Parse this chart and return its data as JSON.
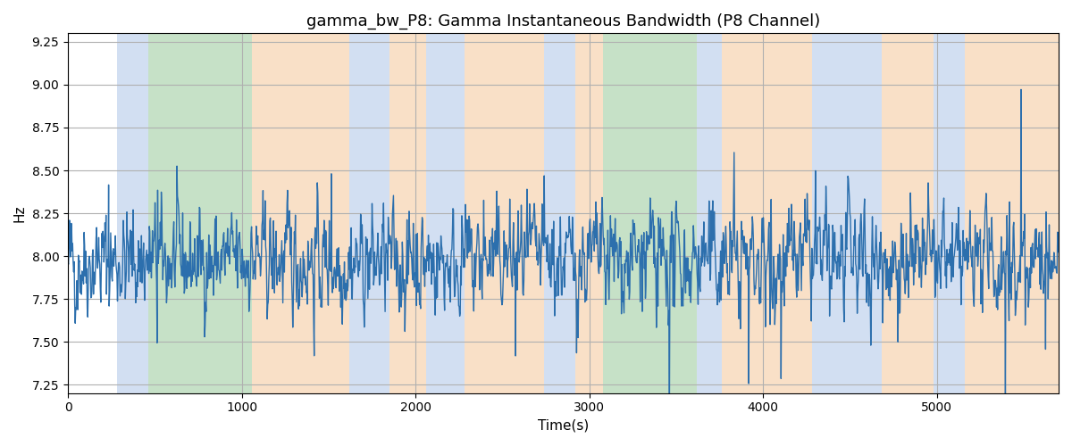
{
  "title": "gamma_bw_P8: Gamma Instantaneous Bandwidth (P8 Channel)",
  "xlabel": "Time(s)",
  "ylabel": "Hz",
  "ylim": [
    7.2,
    9.3
  ],
  "xlim": [
    0,
    5700
  ],
  "background_color": "#ffffff",
  "grid_color": "#b0b0b0",
  "line_color": "#2c6fad",
  "line_width": 1.0,
  "fig_width": 12.0,
  "fig_height": 5.0,
  "title_fontsize": 13,
  "label_fontsize": 11,
  "colored_bands": [
    {
      "xmin": 280,
      "xmax": 460,
      "color": "#aec6e8",
      "alpha": 0.55
    },
    {
      "xmin": 460,
      "xmax": 1060,
      "color": "#98c99a",
      "alpha": 0.55
    },
    {
      "xmin": 1060,
      "xmax": 1620,
      "color": "#f5c89a",
      "alpha": 0.55
    },
    {
      "xmin": 1620,
      "xmax": 1850,
      "color": "#aec6e8",
      "alpha": 0.55
    },
    {
      "xmin": 1850,
      "xmax": 2060,
      "color": "#f5c89a",
      "alpha": 0.55
    },
    {
      "xmin": 2060,
      "xmax": 2280,
      "color": "#aec6e8",
      "alpha": 0.55
    },
    {
      "xmin": 2280,
      "xmax": 2740,
      "color": "#f5c89a",
      "alpha": 0.55
    },
    {
      "xmin": 2740,
      "xmax": 2920,
      "color": "#aec6e8",
      "alpha": 0.55
    },
    {
      "xmin": 2920,
      "xmax": 3080,
      "color": "#f5c89a",
      "alpha": 0.55
    },
    {
      "xmin": 3080,
      "xmax": 3620,
      "color": "#98c99a",
      "alpha": 0.55
    },
    {
      "xmin": 3620,
      "xmax": 3760,
      "color": "#aec6e8",
      "alpha": 0.55
    },
    {
      "xmin": 3760,
      "xmax": 4280,
      "color": "#f5c89a",
      "alpha": 0.55
    },
    {
      "xmin": 4280,
      "xmax": 4680,
      "color": "#aec6e8",
      "alpha": 0.55
    },
    {
      "xmin": 4680,
      "xmax": 4980,
      "color": "#f5c89a",
      "alpha": 0.55
    },
    {
      "xmin": 4980,
      "xmax": 5160,
      "color": "#aec6e8",
      "alpha": 0.55
    },
    {
      "xmin": 5160,
      "xmax": 5700,
      "color": "#f5c89a",
      "alpha": 0.55
    }
  ],
  "random_seed": 42,
  "n_points": 1900,
  "total_time": 5700,
  "base_mean": 7.97,
  "noise_std": 0.13,
  "ar_coef": 0.55,
  "spike_count": 60,
  "spike_std": 0.38
}
